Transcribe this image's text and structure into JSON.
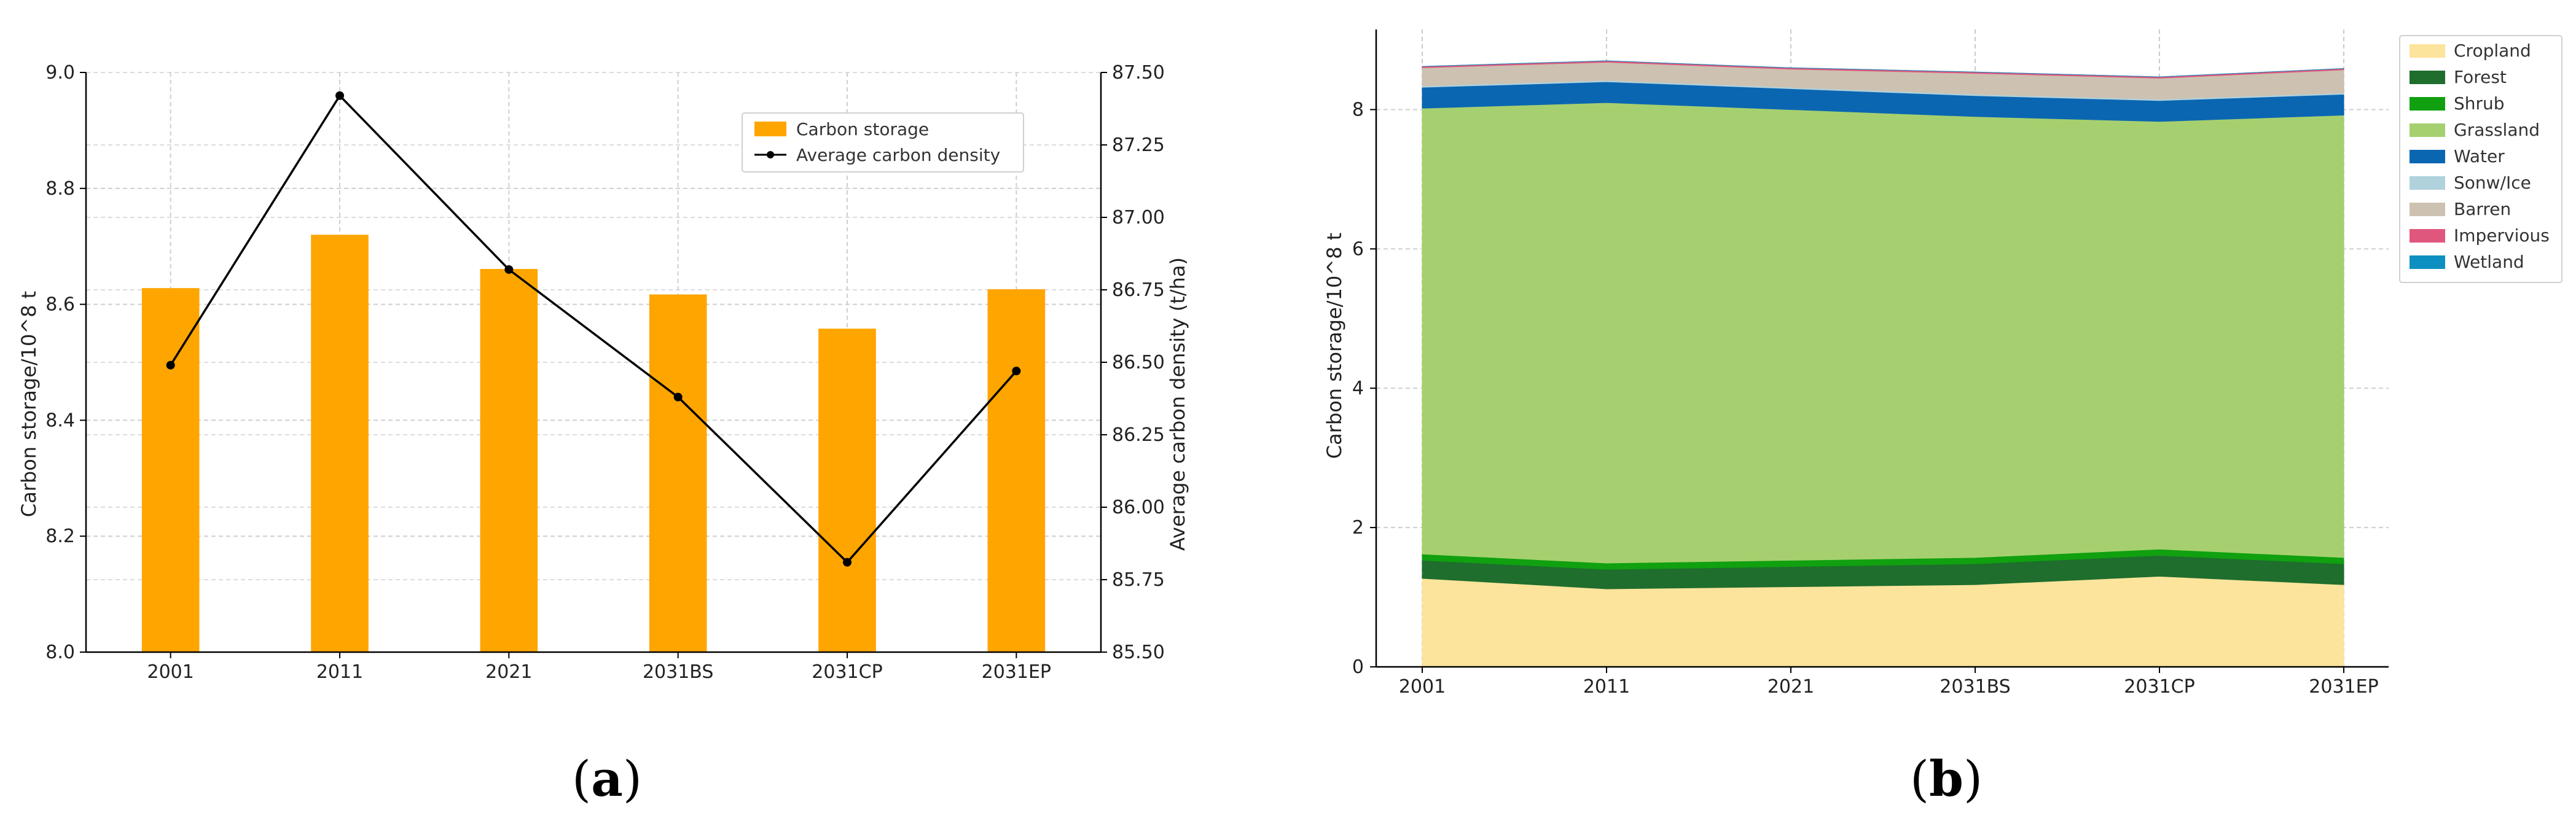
{
  "chart_data": [
    {
      "panel_label": "(a)",
      "panel_letter": "a",
      "type": "bar",
      "title": "",
      "categories": [
        "2001",
        "2011",
        "2021",
        "2031BS",
        "2031CP",
        "2031EP"
      ],
      "series": [
        {
          "name": "Carbon storage",
          "type": "bar",
          "axis": "left",
          "color": "#FFA500",
          "values": [
            8.628,
            8.72,
            8.661,
            8.617,
            8.558,
            8.626
          ]
        },
        {
          "name": "Average carbon density",
          "type": "line",
          "axis": "right",
          "color": "#000000",
          "values": [
            86.49,
            87.42,
            86.82,
            86.38,
            85.81,
            86.47
          ]
        }
      ],
      "xlabel": "",
      "ylabel": "Carbon storage/10^8 t",
      "ylabel_right": "Average carbon density (t/ha)",
      "ylim": [
        8.0,
        9.0
      ],
      "ylim_right": [
        85.5,
        87.5
      ],
      "yticks": [
        "8.0",
        "8.2",
        "8.4",
        "8.6",
        "8.8",
        "9.0"
      ],
      "yticks_right": [
        "85.50",
        "85.75",
        "86.00",
        "86.25",
        "86.50",
        "86.75",
        "87.00",
        "87.25",
        "87.50"
      ],
      "grid": true,
      "legend_position": "top-right"
    },
    {
      "panel_label": "(b)",
      "panel_letter": "b",
      "type": "area",
      "stacked": true,
      "title": "",
      "categories": [
        "2001",
        "2011",
        "2021",
        "2031BS",
        "2031CP",
        "2031EP"
      ],
      "series": [
        {
          "name": "Cropland",
          "color": "#FCE49C",
          "values": [
            1.27,
            1.12,
            1.15,
            1.18,
            1.3,
            1.18
          ]
        },
        {
          "name": "Forest",
          "color": "#1F6E2D",
          "values": [
            0.26,
            0.28,
            0.29,
            0.3,
            0.3,
            0.3
          ]
        },
        {
          "name": "Shrub",
          "color": "#10A010",
          "values": [
            0.09,
            0.09,
            0.09,
            0.09,
            0.09,
            0.09
          ]
        },
        {
          "name": "Grassland",
          "color": "#A6D06F",
          "values": [
            6.4,
            6.61,
            6.47,
            6.33,
            6.14,
            6.35
          ]
        },
        {
          "name": "Water",
          "color": "#0B66B2",
          "values": [
            0.3,
            0.3,
            0.3,
            0.3,
            0.3,
            0.3
          ]
        },
        {
          "name": "Sonw/Ice",
          "color": "#B0D2DC",
          "values": [
            0.02,
            0.02,
            0.02,
            0.02,
            0.02,
            0.02
          ]
        },
        {
          "name": "Barren",
          "color": "#CDC1B1",
          "values": [
            0.26,
            0.26,
            0.26,
            0.3,
            0.3,
            0.33
          ]
        },
        {
          "name": "Impervious",
          "color": "#E0577D",
          "values": [
            0.02,
            0.02,
            0.02,
            0.02,
            0.02,
            0.02
          ]
        },
        {
          "name": "Wetland",
          "color": "#0D8FC1",
          "values": [
            0.0,
            0.0,
            0.0,
            0.0,
            0.0,
            0.0
          ]
        }
      ],
      "xlabel": "",
      "ylabel": "Carbon storage/10^8 t",
      "ylim": [
        0,
        9.15
      ],
      "yticks": [
        "0",
        "2",
        "4",
        "6",
        "8"
      ],
      "grid": true,
      "legend_position": "outside-top-right"
    }
  ]
}
